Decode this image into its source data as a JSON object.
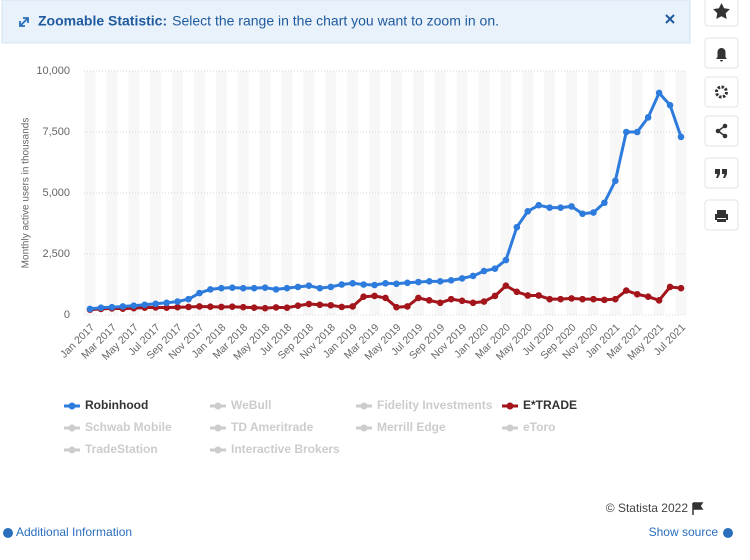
{
  "banner": {
    "title": "Zoomable Statistic:",
    "text": "Select the range in the chart you want to zoom in on."
  },
  "chart_data": {
    "type": "line",
    "y_label": "Monthly active users in thousands",
    "categories": [
      "Jan 2017",
      null,
      "Mar 2017",
      null,
      "May 2017",
      null,
      "Jul 2017",
      null,
      "Sep 2017",
      null,
      "Nov 2017",
      null,
      "Jan 2018",
      null,
      "Mar 2018",
      null,
      "May 2018",
      null,
      "Jul 2018",
      null,
      "Sep 2018",
      null,
      "Nov 2018",
      null,
      "Jan 2019",
      null,
      "Mar 2019",
      null,
      "May 2019",
      null,
      "Jul 2019",
      null,
      "Sep 2019",
      null,
      "Nov 2019",
      null,
      "Jan 2020",
      null,
      "Mar 2020",
      null,
      "May 2020",
      null,
      "Jul 2020",
      null,
      "Sep 2020",
      null,
      "Nov 2020",
      null,
      "Jan 2021",
      null,
      "Mar 2021",
      null,
      "May 2021",
      null,
      "Jul 2021"
    ],
    "series": [
      {
        "name": "Robinhood",
        "color": "#2d7bdc",
        "values": [
          250,
          300,
          320,
          350,
          380,
          420,
          460,
          500,
          550,
          650,
          900,
          1050,
          1100,
          1120,
          1100,
          1100,
          1120,
          1050,
          1100,
          1150,
          1200,
          1100,
          1150,
          1250,
          1300,
          1250,
          1230,
          1300,
          1280,
          1320,
          1350,
          1380,
          1380,
          1420,
          1500,
          1600,
          1800,
          1900,
          2250,
          3600,
          4250,
          4500,
          4400,
          4400,
          4450,
          4150,
          4200,
          4600,
          5500,
          7500,
          7500,
          8100,
          9100,
          8600,
          7300
        ]
      },
      {
        "name": "E*TRADE",
        "color": "#a3151b",
        "values": [
          220,
          250,
          270,
          260,
          280,
          300,
          310,
          300,
          320,
          330,
          350,
          340,
          330,
          340,
          320,
          300,
          280,
          310,
          300,
          380,
          450,
          420,
          400,
          330,
          350,
          750,
          780,
          700,
          320,
          350,
          700,
          600,
          500,
          650,
          580,
          500,
          550,
          780,
          1200,
          950,
          800,
          800,
          650,
          650,
          680,
          650,
          650,
          620,
          650,
          1000,
          850,
          750,
          600,
          1150,
          1100
        ]
      }
    ],
    "inactive_series": [
      "WeBull",
      "Fidelity Investments",
      "Schwab Mobile",
      "TD Ameritrade",
      "Merrill Edge",
      "eToro",
      "TradeStation",
      "Interactive Brokers"
    ],
    "inactive_color": "#cccccc",
    "ylim": [
      0,
      10000
    ],
    "yticks": [
      0,
      {
        "value": 2500,
        "label": "2,500"
      },
      {
        "value": 5000,
        "label": "5,000"
      },
      {
        "value": 7500,
        "label": "7,500"
      },
      {
        "value": 10000,
        "label": "10,000"
      }
    ],
    "grid": true
  },
  "footer": {
    "credit": "© Statista 2022",
    "left_link": "Additional Information",
    "right_link": "Show source"
  }
}
